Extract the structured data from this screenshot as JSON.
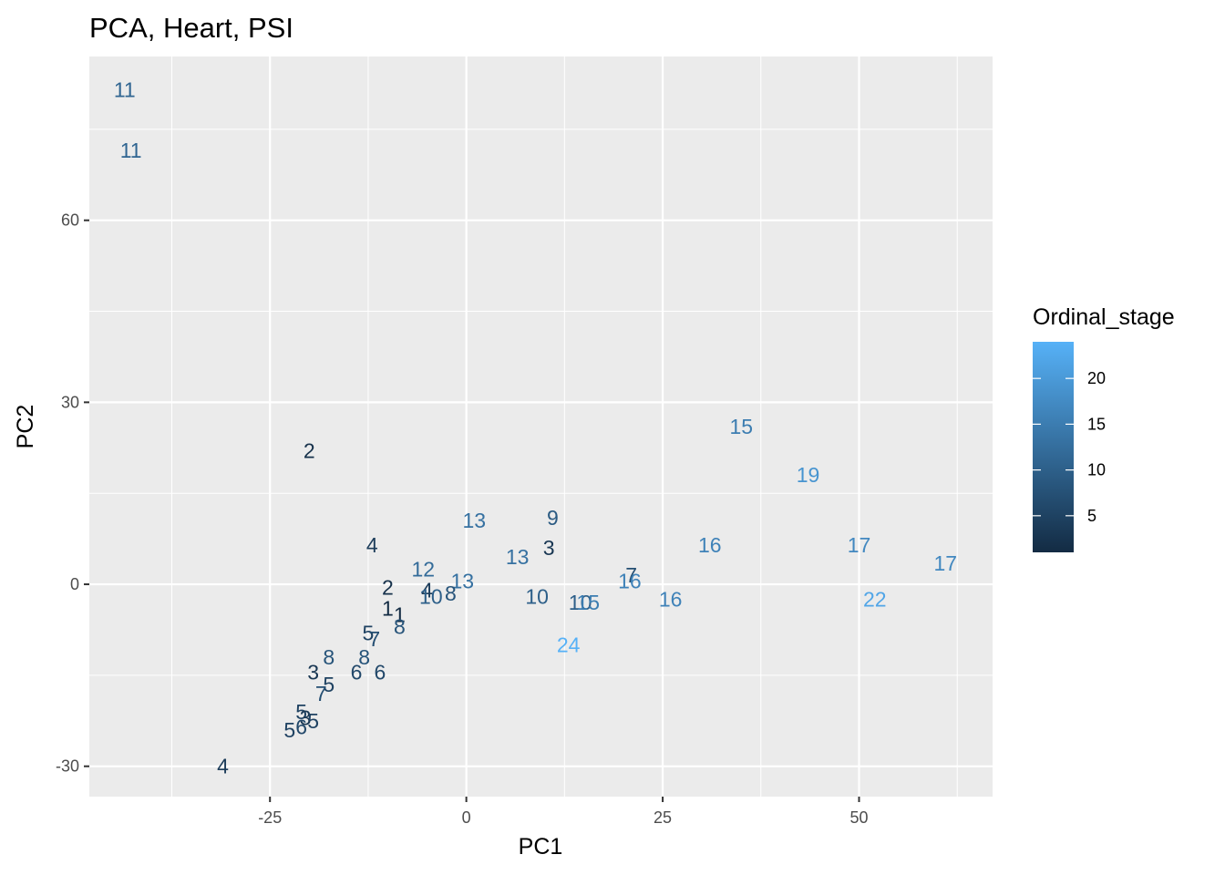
{
  "chart_data": {
    "type": "scatter",
    "title": "PCA, Heart, PSI",
    "xlabel": "PC1",
    "ylabel": "PC2",
    "xlim": [
      -48,
      67
    ],
    "ylim": [
      -35,
      87
    ],
    "x_ticks": [
      -25,
      0,
      25,
      50
    ],
    "x_tick_labels": [
      "-25",
      "0",
      "25",
      "50"
    ],
    "y_ticks": [
      -30,
      0,
      30,
      60
    ],
    "y_tick_labels": [
      "-30",
      "0",
      "30",
      "60"
    ],
    "grid": true,
    "point_style": "text labels showing Ordinal_stage value",
    "legend": {
      "title": "Ordinal_stage",
      "type": "colorbar",
      "placement": "right",
      "range": [
        1,
        24
      ],
      "ticks": [
        5,
        10,
        15,
        20
      ],
      "tick_labels": [
        "5",
        "10",
        "15",
        "20"
      ],
      "low_color": "#132B43",
      "high_color": "#56B1F7"
    },
    "points": [
      {
        "x": -43.5,
        "y": 81.5,
        "label": "11"
      },
      {
        "x": -42.7,
        "y": 71.5,
        "label": "11"
      },
      {
        "x": -20,
        "y": 22,
        "label": "2"
      },
      {
        "x": -12,
        "y": 6.5,
        "label": "4"
      },
      {
        "x": 1,
        "y": 10.5,
        "label": "13"
      },
      {
        "x": 11,
        "y": 11,
        "label": "9"
      },
      {
        "x": 10.5,
        "y": 6,
        "label": "3"
      },
      {
        "x": 6.5,
        "y": 4.5,
        "label": "13"
      },
      {
        "x": -5.5,
        "y": 2.5,
        "label": "12"
      },
      {
        "x": -0.5,
        "y": 0.5,
        "label": "13"
      },
      {
        "x": -10,
        "y": -0.5,
        "label": "2"
      },
      {
        "x": -5,
        "y": -1,
        "label": "4"
      },
      {
        "x": -4.5,
        "y": -2,
        "label": "10"
      },
      {
        "x": -2,
        "y": -1.5,
        "label": "8"
      },
      {
        "x": -10,
        "y": -4,
        "label": "1"
      },
      {
        "x": -8.5,
        "y": -5,
        "label": "1"
      },
      {
        "x": -8.5,
        "y": -7,
        "label": "8"
      },
      {
        "x": -12.5,
        "y": -8,
        "label": "5"
      },
      {
        "x": -11.7,
        "y": -9,
        "label": "7"
      },
      {
        "x": -17.5,
        "y": -12,
        "label": "8"
      },
      {
        "x": -13,
        "y": -12,
        "label": "8"
      },
      {
        "x": -19.5,
        "y": -14.5,
        "label": "3"
      },
      {
        "x": -14,
        "y": -14.5,
        "label": "6"
      },
      {
        "x": -11,
        "y": -14.5,
        "label": "6"
      },
      {
        "x": -17.5,
        "y": -16.5,
        "label": "5"
      },
      {
        "x": -18.5,
        "y": -18,
        "label": "7"
      },
      {
        "x": -21,
        "y": -21,
        "label": "5"
      },
      {
        "x": -20.5,
        "y": -22,
        "label": "3"
      },
      {
        "x": -19.5,
        "y": -22.5,
        "label": "5"
      },
      {
        "x": -22.5,
        "y": -24,
        "label": "5"
      },
      {
        "x": -21,
        "y": -23.5,
        "label": "6"
      },
      {
        "x": -31,
        "y": -30,
        "label": "4"
      },
      {
        "x": 9,
        "y": -2,
        "label": "10"
      },
      {
        "x": 14.5,
        "y": -3,
        "label": "10"
      },
      {
        "x": 15.5,
        "y": -3,
        "label": "15"
      },
      {
        "x": 21,
        "y": 1.5,
        "label": "7"
      },
      {
        "x": 20.8,
        "y": 0.5,
        "label": "16"
      },
      {
        "x": 26,
        "y": -2.5,
        "label": "16"
      },
      {
        "x": 13,
        "y": -10,
        "label": "24"
      },
      {
        "x": 31,
        "y": 6.5,
        "label": "16"
      },
      {
        "x": 35,
        "y": 26,
        "label": "15"
      },
      {
        "x": 43.5,
        "y": 18,
        "label": "19"
      },
      {
        "x": 50,
        "y": 6.5,
        "label": "17"
      },
      {
        "x": 61,
        "y": 3.5,
        "label": "17"
      },
      {
        "x": 52,
        "y": -2.5,
        "label": "22"
      }
    ]
  }
}
